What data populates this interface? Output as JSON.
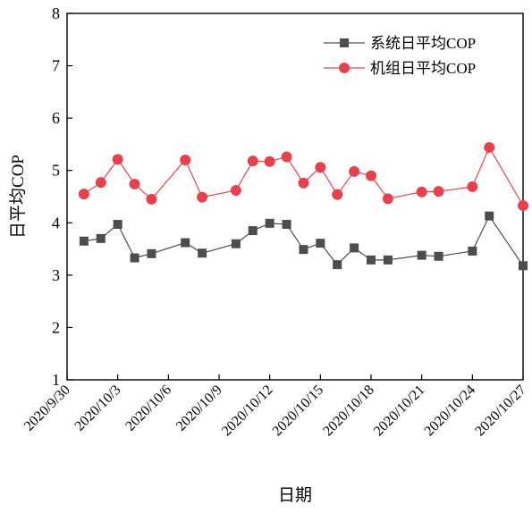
{
  "chart_data": {
    "type": "line",
    "xlabel": "日期",
    "ylabel": "日平均COP",
    "ylim": [
      1,
      8
    ],
    "yticks": [
      "1",
      "2",
      "3",
      "4",
      "5",
      "6",
      "7",
      "8"
    ],
    "xticks": [
      "2020/9/30",
      "2020/10/3",
      "2020/10/6",
      "2020/10/9",
      "2020/10/12",
      "2020/10/15",
      "2020/10/18",
      "2020/10/21",
      "2020/10/24",
      "2020/10/27"
    ],
    "xlim": [
      0,
      27
    ],
    "grid": false,
    "legend_position": "top-right",
    "series": [
      {
        "name": "系统日平均COP",
        "marker": "square",
        "color": "#4d4d4d",
        "x": [
          1,
          2,
          3,
          4,
          5,
          7,
          8,
          10,
          11,
          12,
          13,
          14,
          15,
          16,
          17,
          18,
          19,
          21,
          22,
          24,
          25,
          27
        ],
        "values": [
          3.65,
          3.7,
          3.97,
          3.33,
          3.41,
          3.62,
          3.42,
          3.6,
          3.85,
          3.99,
          3.97,
          3.49,
          3.61,
          3.2,
          3.52,
          3.29,
          3.29,
          3.38,
          3.36,
          3.46,
          4.13,
          3.18
        ]
      },
      {
        "name": "机组日平均COP",
        "marker": "circle",
        "color": "#e8414e",
        "x": [
          1,
          2,
          3,
          4,
          5,
          7,
          8,
          10,
          11,
          12,
          13,
          14,
          15,
          16,
          17,
          18,
          19,
          21,
          22,
          24,
          25,
          27
        ],
        "values": [
          4.55,
          4.77,
          5.21,
          4.74,
          4.45,
          5.2,
          4.49,
          4.62,
          5.18,
          5.17,
          5.26,
          4.76,
          5.06,
          4.54,
          4.98,
          4.9,
          4.46,
          4.59,
          4.6,
          4.69,
          5.44,
          4.33
        ]
      }
    ]
  }
}
